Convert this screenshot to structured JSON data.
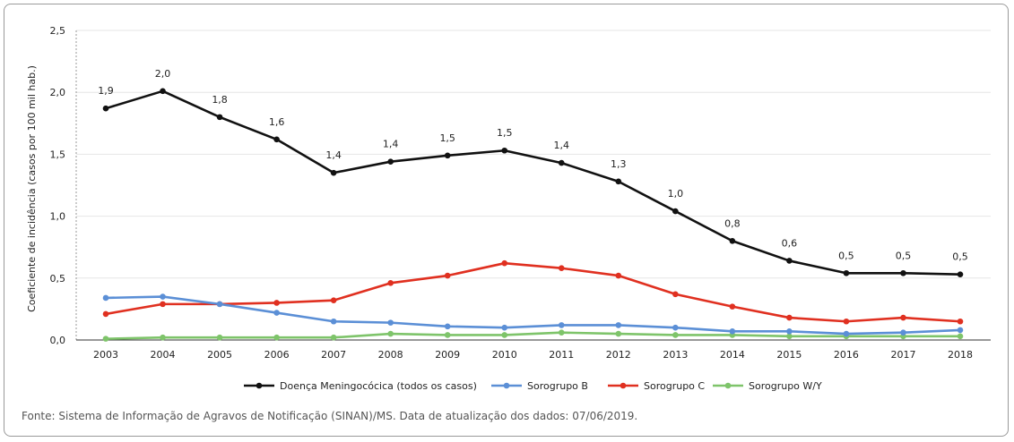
{
  "chart_data": {
    "type": "line",
    "ylabel": "Coeficiente de incidência (casos por 100 mil hab.)",
    "xlabel": "",
    "ylim": [
      0,
      2.5
    ],
    "yticks": [
      "0,0",
      "0,5",
      "1,0",
      "1,5",
      "2,0",
      "2,5"
    ],
    "ytick_values": [
      0,
      0.5,
      1.0,
      1.5,
      2.0,
      2.5
    ],
    "categories": [
      "2003",
      "2004",
      "2005",
      "2006",
      "2007",
      "2008",
      "2009",
      "2010",
      "2011",
      "2012",
      "2013",
      "2014",
      "2015",
      "2016",
      "2017",
      "2018"
    ],
    "grid": true,
    "legend_position": "bottom",
    "series": [
      {
        "name": "Doença Meningocócica (todos os casos)",
        "color": "#111111",
        "values": [
          1.87,
          2.01,
          1.8,
          1.62,
          1.35,
          1.44,
          1.49,
          1.53,
          1.43,
          1.28,
          1.04,
          0.8,
          0.64,
          0.54,
          0.54,
          0.53
        ],
        "labels": [
          "1,9",
          "2,0",
          "1,8",
          "1,6",
          "1,4",
          "1,4",
          "1,5",
          "1,5",
          "1,4",
          "1,3",
          "1,0",
          "0,8",
          "0,6",
          "0,5",
          "0,5",
          "0,5"
        ]
      },
      {
        "name": "Sorogrupo B",
        "color": "#5b8fd6",
        "values": [
          0.34,
          0.35,
          0.29,
          0.22,
          0.15,
          0.14,
          0.11,
          0.1,
          0.12,
          0.12,
          0.1,
          0.07,
          0.07,
          0.05,
          0.06,
          0.08
        ]
      },
      {
        "name": "Sorogrupo C",
        "color": "#e03020",
        "values": [
          0.21,
          0.29,
          0.29,
          0.3,
          0.32,
          0.46,
          0.52,
          0.62,
          0.58,
          0.52,
          0.37,
          0.27,
          0.18,
          0.15,
          0.18,
          0.15
        ]
      },
      {
        "name": "Sorogrupo W/Y",
        "color": "#7ec46a",
        "values": [
          0.01,
          0.02,
          0.02,
          0.02,
          0.02,
          0.05,
          0.04,
          0.04,
          0.06,
          0.05,
          0.04,
          0.04,
          0.03,
          0.03,
          0.03,
          0.03
        ]
      }
    ]
  },
  "source_note": "Fonte: Sistema de Informação de Agravos de Notificação (SINAN)/MS. Data de atualização dos dados: 07/06/2019."
}
